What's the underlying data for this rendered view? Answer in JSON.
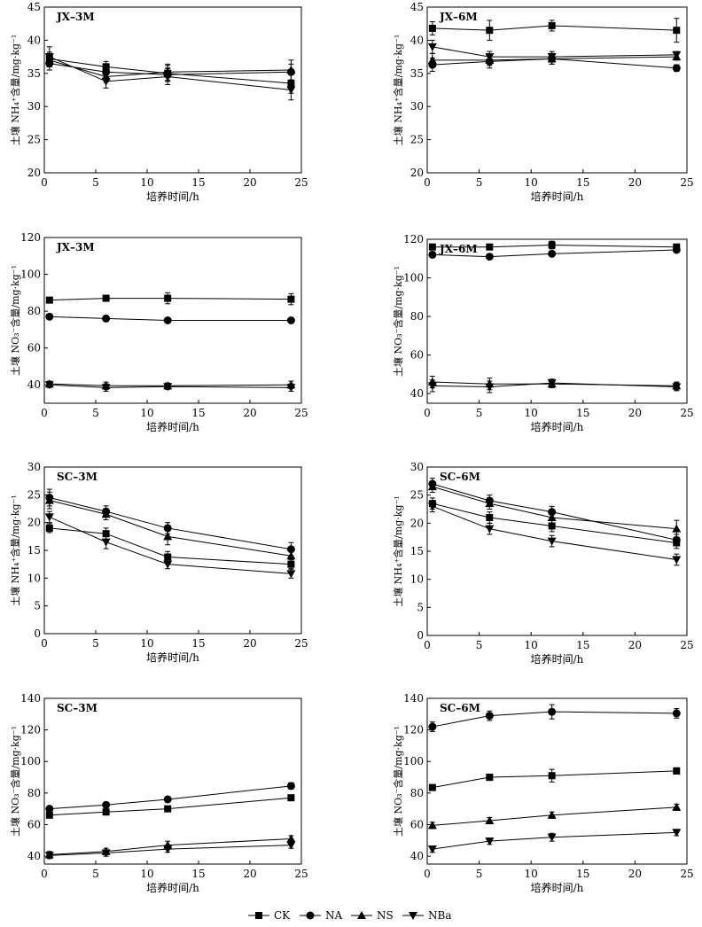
{
  "chart_data": [
    {
      "type": "line",
      "title": "JX–3M",
      "xlabel": "培养时间/h",
      "ylabel": "土壤 NH₄⁺含量/mg·kg⁻¹",
      "xlim": [
        0,
        25
      ],
      "ylim": [
        20,
        45
      ],
      "xticks": [
        0,
        5,
        10,
        15,
        20,
        25
      ],
      "yticks": [
        20,
        25,
        30,
        35,
        40,
        45
      ],
      "x": [
        0.5,
        6,
        12,
        24
      ],
      "series": [
        {
          "name": "CK",
          "values": [
            37.2,
            36.0,
            35.0,
            33.5
          ],
          "err": [
            1.0,
            0.8,
            1.2,
            1.5
          ]
        },
        {
          "name": "NA",
          "values": [
            36.5,
            35.2,
            34.8,
            35.2
          ],
          "err": [
            1.0,
            0.8,
            1.0,
            1.2
          ]
        },
        {
          "name": "NS",
          "values": [
            37.0,
            34.5,
            35.2,
            35.5
          ],
          "err": [
            1.0,
            0.8,
            1.2,
            1.5
          ]
        },
        {
          "name": "NBa",
          "values": [
            37.5,
            33.8,
            34.5,
            32.5
          ],
          "err": [
            1.5,
            1.0,
            1.2,
            1.5
          ]
        }
      ]
    },
    {
      "type": "line",
      "title": "JX–6M",
      "xlabel": "培养时间/h",
      "ylabel": "土壤 NH₄⁺含量/mg·kg⁻¹",
      "xlim": [
        0,
        25
      ],
      "ylim": [
        20,
        45
      ],
      "xticks": [
        0,
        5,
        10,
        15,
        20,
        25
      ],
      "yticks": [
        20,
        25,
        30,
        35,
        40,
        45
      ],
      "x": [
        0.5,
        6,
        12,
        24
      ],
      "series": [
        {
          "name": "CK",
          "values": [
            41.8,
            41.5,
            42.2,
            41.5
          ],
          "err": [
            1.0,
            1.5,
            0.8,
            1.8
          ]
        },
        {
          "name": "NA",
          "values": [
            36.3,
            36.8,
            37.2,
            35.8
          ],
          "err": [
            1.0,
            1.0,
            0.8,
            0.5
          ]
        },
        {
          "name": "NS",
          "values": [
            37.0,
            37.0,
            37.2,
            37.5
          ],
          "err": [
            1.0,
            0.8,
            0.8,
            0.5
          ]
        },
        {
          "name": "NBa",
          "values": [
            39.0,
            37.5,
            37.5,
            37.8
          ],
          "err": [
            1.0,
            0.8,
            0.8,
            0.5
          ]
        }
      ]
    },
    {
      "type": "line",
      "title": "JX–3M",
      "xlabel": "培养时间/h",
      "ylabel": "土壤 NO₃⁻含量/mg·kg⁻¹",
      "xlim": [
        0,
        25
      ],
      "ylim": [
        30,
        120
      ],
      "xticks": [
        0,
        5,
        10,
        15,
        20,
        25
      ],
      "yticks": [
        40,
        60,
        80,
        100,
        120
      ],
      "x": [
        0.5,
        6,
        12,
        24
      ],
      "series": [
        {
          "name": "CK",
          "values": [
            86.0,
            87.0,
            87.0,
            86.5
          ],
          "err": [
            1.0,
            1.5,
            3.0,
            3.0
          ]
        },
        {
          "name": "NA",
          "values": [
            77.0,
            76.0,
            75.0,
            75.0
          ],
          "err": [
            1.0,
            1.0,
            1.0,
            1.0
          ]
        },
        {
          "name": "NS",
          "values": [
            40.5,
            39.5,
            39.5,
            40.0
          ],
          "err": [
            1.5,
            2.0,
            1.5,
            2.0
          ]
        },
        {
          "name": "NBa",
          "values": [
            40.0,
            38.5,
            39.0,
            38.5
          ],
          "err": [
            1.5,
            2.0,
            1.5,
            2.0
          ]
        }
      ]
    },
    {
      "type": "line",
      "title": "JX–6M",
      "xlabel": "培养时间/h",
      "ylabel": "土壤 NO₃⁻含量/mg·kg⁻¹",
      "xlim": [
        0,
        25
      ],
      "ylim": [
        35,
        120
      ],
      "xticks": [
        0,
        5,
        10,
        15,
        20,
        25
      ],
      "yticks": [
        40,
        60,
        80,
        100,
        120
      ],
      "x": [
        0.5,
        6,
        12,
        24
      ],
      "series": [
        {
          "name": "CK",
          "values": [
            116.0,
            116.0,
            117.0,
            116.0
          ],
          "err": [
            1.5,
            1.0,
            2.0,
            1.5
          ]
        },
        {
          "name": "NA",
          "values": [
            112.0,
            111.0,
            112.5,
            114.5
          ],
          "err": [
            1.5,
            1.0,
            1.0,
            1.0
          ]
        },
        {
          "name": "NS",
          "values": [
            46.0,
            45.0,
            45.0,
            44.0
          ],
          "err": [
            3.0,
            3.0,
            2.0,
            2.0
          ]
        },
        {
          "name": "NBa",
          "values": [
            44.0,
            43.5,
            45.5,
            43.5
          ],
          "err": [
            3.0,
            3.0,
            2.0,
            2.0
          ]
        }
      ]
    },
    {
      "type": "line",
      "title": "SC–3M",
      "xlabel": "培养时间/h",
      "ylabel": "土壤 NH₄⁺含量/mg·kg⁻¹",
      "xlim": [
        0,
        25
      ],
      "ylim": [
        0,
        30
      ],
      "xticks": [
        0,
        5,
        10,
        15,
        20,
        25
      ],
      "yticks": [
        0,
        5,
        10,
        15,
        20,
        25,
        30
      ],
      "x": [
        0.5,
        6,
        12,
        24
      ],
      "series": [
        {
          "name": "CK",
          "values": [
            19.0,
            18.0,
            13.8,
            12.5
          ],
          "err": [
            0.8,
            1.0,
            1.0,
            0.8
          ]
        },
        {
          "name": "NA",
          "values": [
            24.5,
            22.0,
            19.0,
            15.2
          ],
          "err": [
            1.5,
            1.0,
            1.0,
            1.2
          ]
        },
        {
          "name": "NS",
          "values": [
            24.0,
            21.5,
            17.5,
            14.0
          ],
          "err": [
            1.5,
            1.0,
            1.5,
            1.0
          ]
        },
        {
          "name": "NBa",
          "values": [
            21.0,
            16.5,
            12.5,
            10.8
          ],
          "err": [
            1.0,
            1.2,
            0.8,
            0.8
          ]
        }
      ]
    },
    {
      "type": "line",
      "title": "SC–6M",
      "xlabel": "培养时间/h",
      "ylabel": "土壤 NH₄⁺含量/mg·kg⁻¹",
      "xlim": [
        0,
        25
      ],
      "ylim": [
        0,
        30
      ],
      "xticks": [
        0,
        5,
        10,
        15,
        20,
        25
      ],
      "yticks": [
        0,
        5,
        10,
        15,
        20,
        25,
        30
      ],
      "x": [
        0.5,
        6,
        12,
        24
      ],
      "series": [
        {
          "name": "CK",
          "values": [
            23.5,
            21.0,
            19.5,
            16.5
          ],
          "err": [
            1.0,
            1.0,
            1.0,
            1.0
          ]
        },
        {
          "name": "NA",
          "values": [
            27.0,
            24.0,
            22.0,
            17.0
          ],
          "err": [
            1.0,
            1.0,
            1.0,
            1.0
          ]
        },
        {
          "name": "NS",
          "values": [
            26.5,
            23.5,
            21.0,
            19.0
          ],
          "err": [
            1.0,
            1.0,
            1.2,
            1.5
          ]
        },
        {
          "name": "NBa",
          "values": [
            23.0,
            19.0,
            16.8,
            13.5
          ],
          "err": [
            1.0,
            1.0,
            1.0,
            1.0
          ]
        }
      ]
    },
    {
      "type": "line",
      "title": "SC–3M",
      "xlabel": "培养时间/h",
      "ylabel": "土壤 NO₃⁻含量/mg·kg⁻¹",
      "xlim": [
        0,
        25
      ],
      "ylim": [
        35,
        140
      ],
      "xticks": [
        0,
        5,
        10,
        15,
        20,
        25
      ],
      "yticks": [
        40,
        60,
        80,
        100,
        120,
        140
      ],
      "x": [
        0.5,
        6,
        12,
        24
      ],
      "series": [
        {
          "name": "CK",
          "values": [
            66.0,
            68.0,
            70.0,
            77.0
          ],
          "err": [
            1.5,
            1.5,
            1.5,
            1.5
          ]
        },
        {
          "name": "NA",
          "values": [
            70.0,
            72.5,
            76.0,
            84.5
          ],
          "err": [
            1.5,
            1.5,
            1.5,
            2.0
          ]
        },
        {
          "name": "NS",
          "values": [
            41.0,
            43.0,
            47.0,
            51.0
          ],
          "err": [
            2.0,
            2.0,
            2.5,
            2.0
          ]
        },
        {
          "name": "NBa",
          "values": [
            40.5,
            42.0,
            44.5,
            47.0
          ],
          "err": [
            2.0,
            2.0,
            2.0,
            2.0
          ]
        }
      ]
    },
    {
      "type": "line",
      "title": "SC–6M",
      "xlabel": "培养时间/h",
      "ylabel": "土壤 NO₃⁻含量/mg·kg⁻¹",
      "xlim": [
        0,
        25
      ],
      "ylim": [
        35,
        140
      ],
      "xticks": [
        0,
        5,
        10,
        15,
        20,
        25
      ],
      "yticks": [
        40,
        60,
        80,
        100,
        120,
        140
      ],
      "x": [
        0.5,
        6,
        12,
        24
      ],
      "series": [
        {
          "name": "CK",
          "values": [
            83.5,
            90.0,
            91.0,
            94.0
          ],
          "err": [
            1.5,
            2.0,
            4.0,
            2.0
          ]
        },
        {
          "name": "NA",
          "values": [
            122.0,
            129.0,
            131.5,
            130.5
          ],
          "err": [
            3.0,
            3.0,
            4.5,
            3.0
          ]
        },
        {
          "name": "NS",
          "values": [
            59.5,
            62.5,
            66.0,
            71.0
          ],
          "err": [
            2.0,
            2.0,
            2.0,
            2.0
          ]
        },
        {
          "name": "NBa",
          "values": [
            44.5,
            49.5,
            52.0,
            55.0
          ],
          "err": [
            2.0,
            2.0,
            2.5,
            2.0
          ]
        }
      ]
    }
  ],
  "legend": {
    "items": [
      {
        "label": "CK",
        "marker": "square"
      },
      {
        "label": "NA",
        "marker": "circle"
      },
      {
        "label": "NS",
        "marker": "triangle-up"
      },
      {
        "label": "NBa",
        "marker": "triangle-down"
      }
    ]
  }
}
